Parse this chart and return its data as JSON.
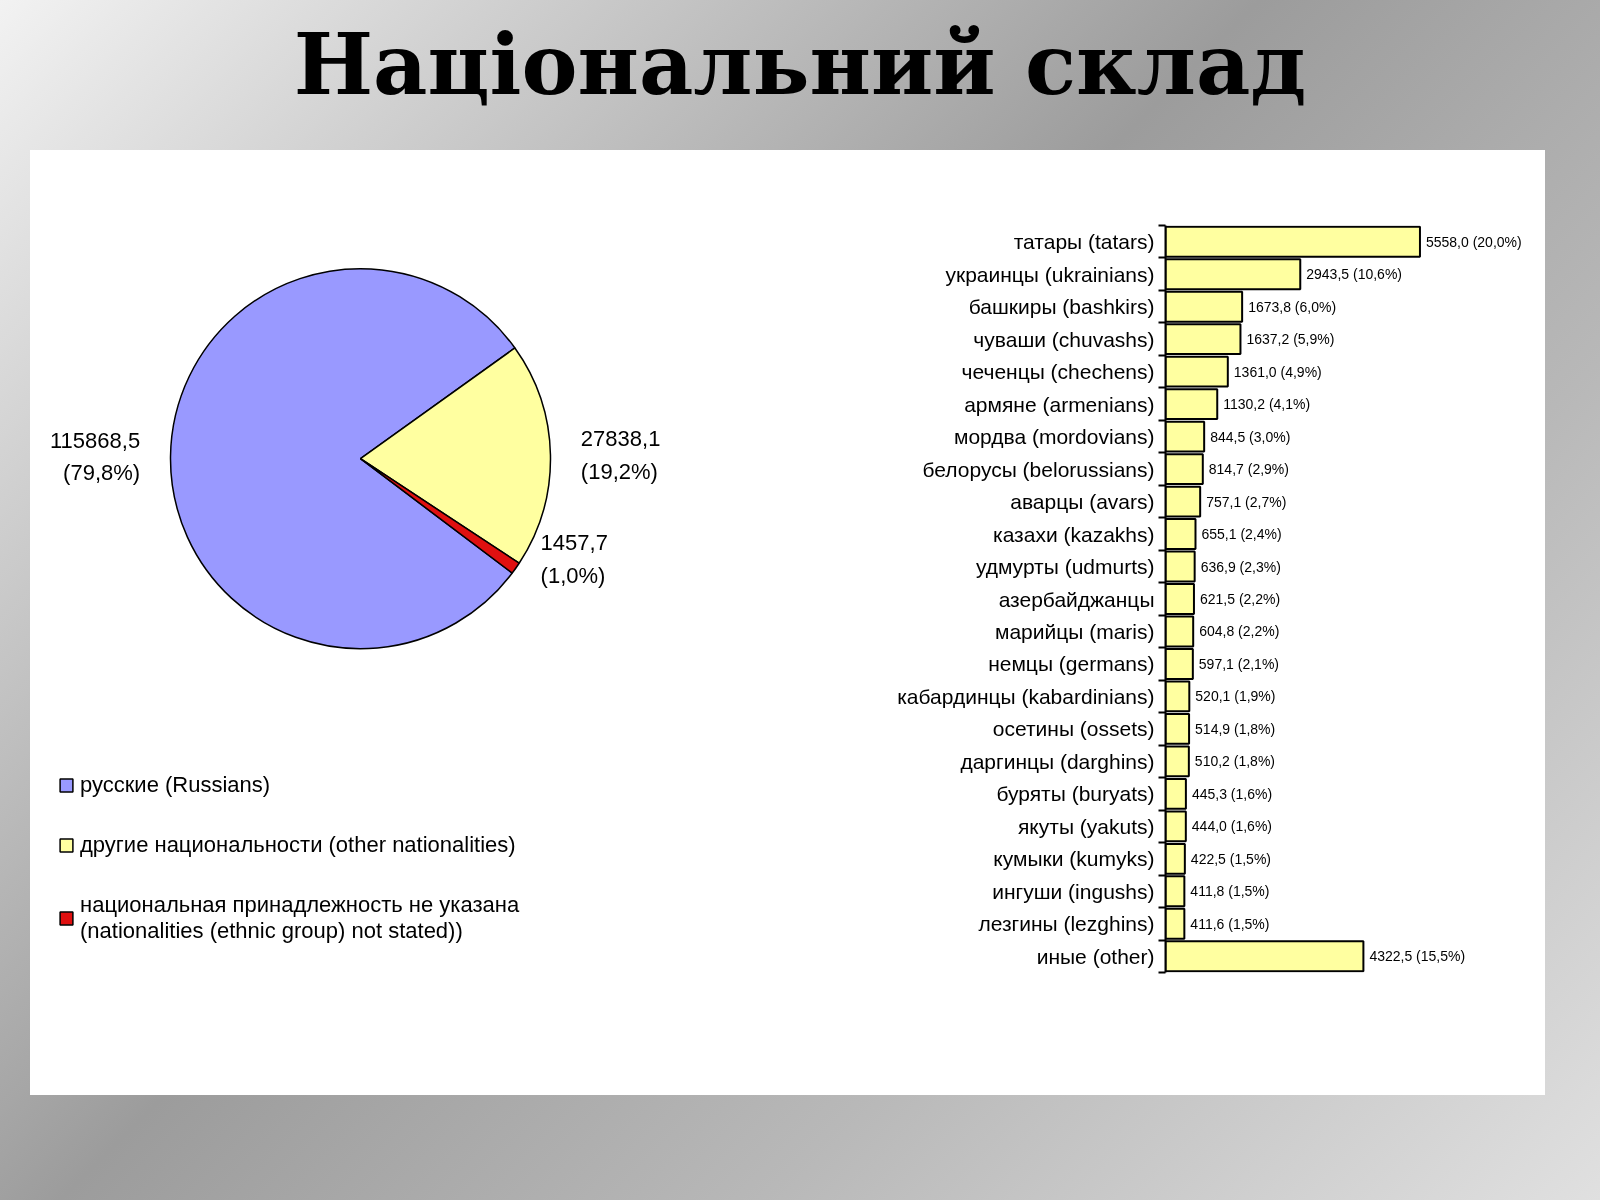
{
  "chart_data": [
    {
      "type": "pie",
      "title": "Національний склад",
      "categories": [
        "русские (Russians)",
        "другие национальности (other nationalities)",
        "национальная принадлежность не указана (nationalities (ethnic group) not stated))"
      ],
      "values": [
        115868.5,
        27838.1,
        1457.7
      ],
      "colors": [
        "#9999ff",
        "#ffffa0",
        "#e01010"
      ],
      "value_labels": [
        "115868,5 (79,8%)",
        "27838,1 (19,2%)",
        "1457,7 (1,0%)"
      ],
      "legend": "bottom left"
    },
    {
      "type": "bar",
      "orientation": "horizontal",
      "categories": [
        "татары (tatars)",
        "украинцы (ukrainians)",
        "башкиры (bashkirs)",
        "чуваши (chuvashs)",
        "чеченцы (chechens)",
        "армяне (armenians)",
        "мордва (mordovians)",
        "белорусы (belorussians)",
        "аварцы (avars)",
        "казахи (kazakhs)",
        "удмурты (udmurts)",
        "азербайджанцы",
        "марийцы (maris)",
        "немцы (germans)",
        "кабардинцы (kabardinians)",
        "осетины (ossets)",
        "даргинцы (darghins)",
        "буряты (buryats)",
        "якуты (yakuts)",
        "кумыки (kumyks)",
        "ингуши (ingushs)",
        "лезгины (lezghins)",
        "иные (other)"
      ],
      "values": [
        5558.0,
        2943.5,
        1673.8,
        1637.2,
        1361.0,
        1130.2,
        844.5,
        814.7,
        757.1,
        655.1,
        636.9,
        621.5,
        604.8,
        597.1,
        520.1,
        514.9,
        510.2,
        445.3,
        444.0,
        422.5,
        411.8,
        411.6,
        4322.5
      ],
      "value_labels": [
        "5558,0 (20,0%)",
        "2943,5 (10,6%)",
        "1673,8 (6,0%)",
        "1637,2 (5,9%)",
        "1361,0 (4,9%)",
        "1130,2 (4,1%)",
        "844,5 (3,0%)",
        "814,7 (2,9%)",
        "757,1 (2,7%)",
        "655,1 (2,4%)",
        "636,9 (2,3%)",
        "621,5 (2,2%)",
        "604,8 (2,2%)",
        "597,1 (2,1%)",
        "520,1 (1,9%)",
        "514,9 (1,8%)",
        "510,2 (1,8%)",
        "445,3 (1,6%)",
        "444,0 (1,6%)",
        "422,5 (1,5%)",
        "411,8 (1,5%)",
        "411,6 (1,5%)",
        "4322,5 (15,5%)"
      ],
      "color": "#ffffa0",
      "xlim": [
        0,
        8300
      ],
      "tick_labels": "y"
    }
  ]
}
